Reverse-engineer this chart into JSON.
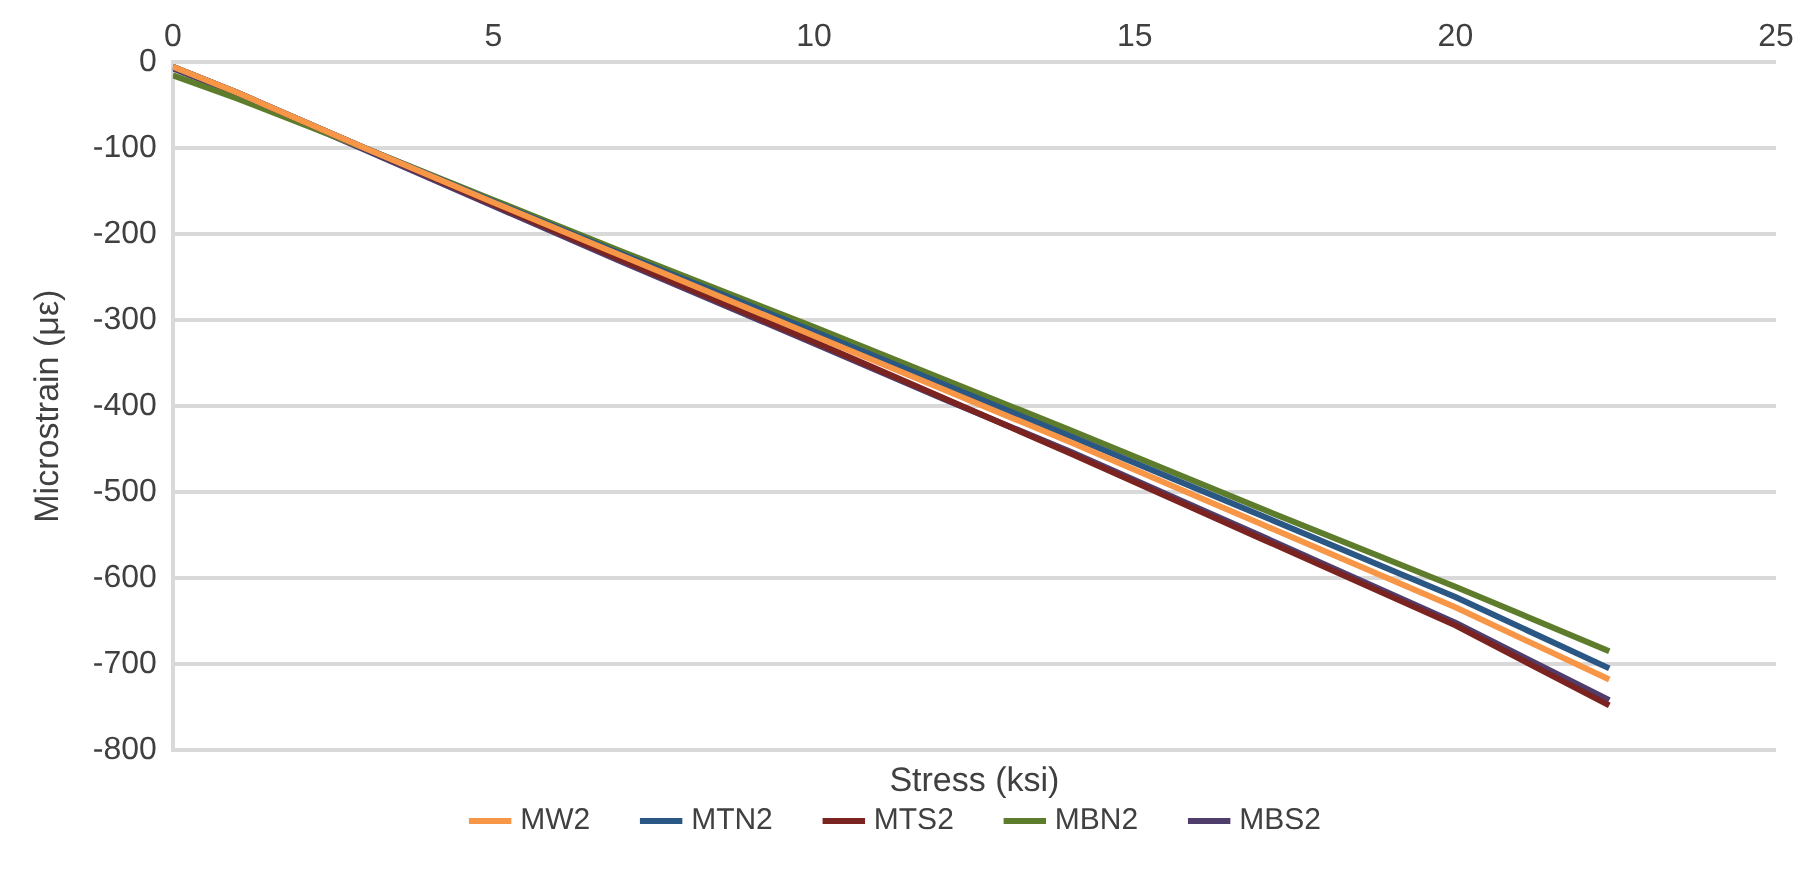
{
  "chart_data": {
    "type": "line",
    "xlabel": "Stress (ksi)",
    "ylabel": "Microstrain (με)",
    "x": [
      0,
      1,
      3,
      5,
      7,
      10,
      12,
      14,
      17,
      20,
      22.4
    ],
    "xlim": [
      0,
      25
    ],
    "xticks": [
      0,
      5,
      10,
      15,
      20,
      25
    ],
    "ylim": [
      -800,
      0
    ],
    "yticks": [
      -800,
      -700,
      -600,
      -500,
      -400,
      -300,
      -200,
      -100,
      0
    ],
    "grid": "y",
    "legend": "bottom",
    "marker": "none",
    "series": [
      {
        "name": "MW2",
        "color": "#f79646",
        "values": [
          -5,
          -35,
          -100,
          -163,
          -225,
          -318,
          -380,
          -442,
          -538,
          -634,
          -718
        ]
      },
      {
        "name": "MTN2",
        "color": "#2a5784",
        "values": [
          -5,
          -35,
          -100,
          -162,
          -223,
          -313,
          -374,
          -435,
          -528,
          -622,
          -705
        ]
      },
      {
        "name": "MTS2",
        "color": "#7b2320",
        "values": [
          -5,
          -35,
          -100,
          -165,
          -230,
          -325,
          -390,
          -455,
          -555,
          -655,
          -748
        ]
      },
      {
        "name": "MBN2",
        "color": "#5e7d2c",
        "values": [
          -15,
          -42,
          -100,
          -160,
          -220,
          -308,
          -368,
          -428,
          -520,
          -610,
          -685
        ]
      },
      {
        "name": "MBS2",
        "color": "#4f3d6b",
        "values": [
          -7,
          -37,
          -102,
          -167,
          -232,
          -327,
          -391,
          -453,
          -552,
          -652,
          -742
        ]
      }
    ]
  }
}
